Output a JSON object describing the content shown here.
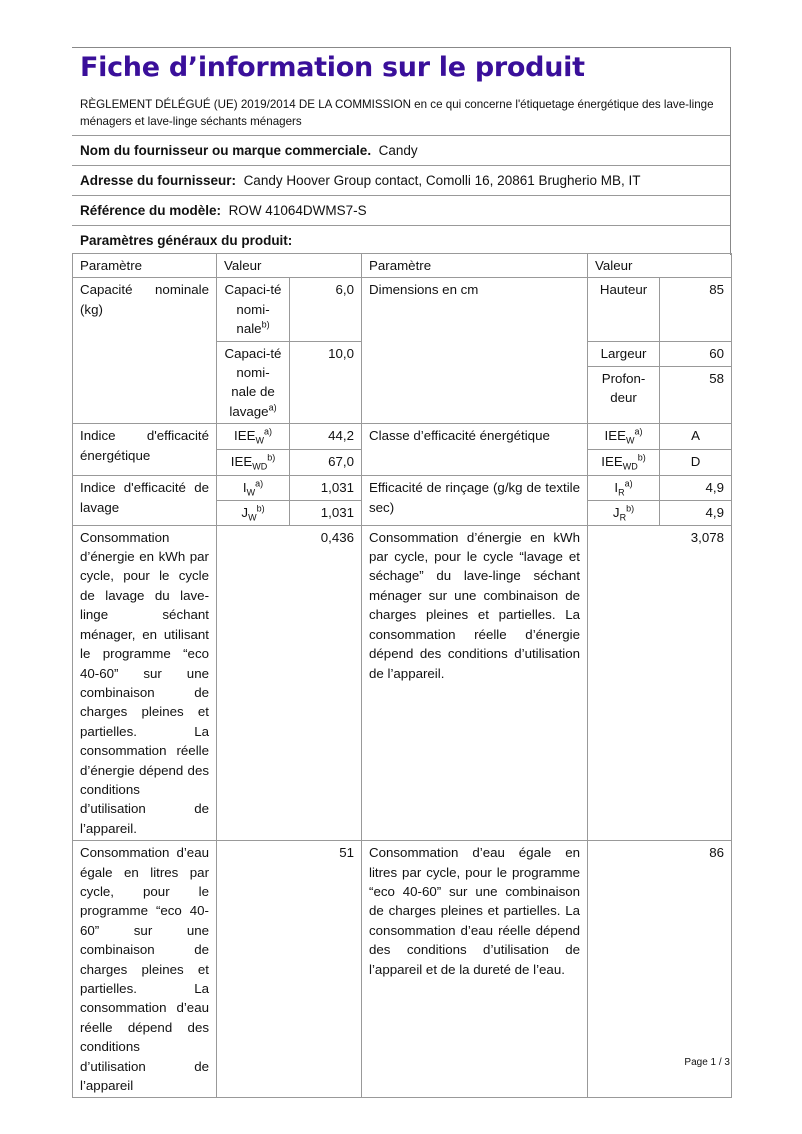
{
  "title": "Fiche d’information sur le produit",
  "regulation": "RÈGLEMENT DÉLÉGUÉ (UE) 2019/2014 DE LA COMMISSION en ce qui concerne l'étiquetage énergétique des lave-linge ménagers et lave-linge séchants ménagers",
  "supplier": {
    "label": "Nom du fournisseur ou marque commerciale.",
    "value": "Candy"
  },
  "address": {
    "label": "Adresse du fournisseur:",
    "value": "Candy Hoover Group contact, Comolli 16, 20861 Brugherio MB, IT"
  },
  "model": {
    "label": "Référence du modèle:",
    "value": "ROW 41064DWMS7-S"
  },
  "general": "Paramètres généraux du produit:",
  "table": {
    "h_param": "Paramètre",
    "h_value": "Valeur",
    "cap_label": "Capacité nominale (kg)",
    "cap1_label": "Capaci-té nomi-nale",
    "cap1_sup": "b)",
    "cap1_value": "6,0",
    "cap2_label": "Capaci-té nomi-nale de lavage",
    "cap2_sup": "a)",
    "cap2_value": "10,0",
    "dim_label": "Dimensions en cm",
    "height_label": "Hauteur",
    "height_value": "85",
    "width_label": "Largeur",
    "width_value": "60",
    "depth_label": "Profon-deur",
    "depth_value": "58",
    "eei_label": "Indice d'efficacité énergétique",
    "eeiw": "IEE",
    "eeiw_sub": "W",
    "eeiw_sup": "a)",
    "eeiw_value": "44,2",
    "eeiwd": "IEE",
    "eeiwd_sub": "WD",
    "eeiwd_sup": "b)",
    "eeiwd_value": "67,0",
    "class_label": "Classe d’efficacité énergétique",
    "class_w": "A",
    "class_wd": "D",
    "wash_label": "Indice d'efficacité de lavage",
    "iw": "I",
    "iw_sub": "W",
    "iw_sup": "a)",
    "iw_value": "1,031",
    "jw": "J",
    "jw_sub": "W",
    "jw_sup": "b)",
    "jw_value": "1,031",
    "rinse_label": "Efficacité de rinçage (g/kg de textile sec)",
    "ir": "I",
    "ir_sub": "R",
    "ir_sup": "a)",
    "ir_value": "4,9",
    "jr": "J",
    "jr_sub": "R",
    "jr_sup": "b)",
    "jr_value": "4,9",
    "energy_w_label": "Consommation d’énergie en kWh par cycle, pour le cycle de lavage du lave-linge séchant ménager, en utilisant le programme “eco 40-60” sur une combinaison de charges pleines et partielles. La consommation réelle d’énergie dépend des conditions d’utilisation de l’appareil.",
    "energy_w_value": "0,436",
    "energy_wd_label": "Consommation d’énergie en kWh par cycle, pour le cycle “lavage et séchage” du lave-linge séchant ménager sur une combinaison de charges pleines et partielles. La consommation réelle d’énergie dépend des conditions d’utilisation de l’appareil.",
    "energy_wd_value": "3,078",
    "water_w_label": "Consommation d’eau égale en litres par cycle, pour le programme “eco 40-60” sur une combinaison de charges pleines et partielles. La consommation d’eau réelle dépend des conditions d’utilisation de l’appareil",
    "water_w_value": "51",
    "water_wd_label": "Consommation d’eau égale en litres par cycle, pour le programme “eco 40-60” sur une combinaison de charges pleines et partielles. La consommation d’eau réelle dépend des conditions d’utilisation de l’appareil et de la dureté de l’eau.",
    "water_wd_value": "86"
  },
  "footer": "Page 1 / 3",
  "colors": {
    "title": "#3a0f9a"
  }
}
